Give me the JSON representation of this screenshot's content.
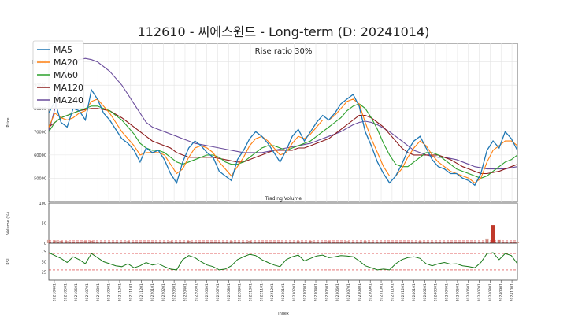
{
  "title": "112610 - 씨에스윈드 - Long-term (D: 20241014)",
  "chart_data": [
    {
      "type": "line",
      "panel": "price",
      "annotation": "Rise ratio 30%",
      "ylabel": "Price",
      "ylim": [
        40000,
        108000
      ],
      "yticks": [
        50000,
        60000,
        70000,
        80000,
        90000,
        100000
      ],
      "grid": true,
      "legend_position": "top-left",
      "series": [
        {
          "name": "MA5",
          "color": "#1f77b4",
          "values": [
            78000,
            83000,
            74000,
            72000,
            80000,
            79000,
            75000,
            88000,
            84000,
            78000,
            75000,
            71000,
            67000,
            65000,
            62000,
            57000,
            63000,
            61000,
            62000,
            58000,
            52000,
            48000,
            57000,
            63000,
            66000,
            64000,
            61000,
            59000,
            53000,
            51000,
            49000,
            58000,
            62000,
            67000,
            70000,
            68000,
            65000,
            61000,
            57000,
            62000,
            68000,
            71000,
            66000,
            70000,
            74000,
            77000,
            75000,
            78000,
            82000,
            84000,
            86000,
            81000,
            70000,
            64000,
            57000,
            52000,
            48000,
            51000,
            56000,
            62000,
            66000,
            68000,
            63000,
            58000,
            55000,
            54000,
            52000,
            52000,
            50000,
            49000,
            47000,
            52000,
            62000,
            66000,
            63000,
            70000,
            67000,
            62000
          ]
        },
        {
          "name": "MA20",
          "color": "#ff7f0e",
          "values": [
            72000,
            78000,
            76000,
            75000,
            76000,
            78000,
            79000,
            83000,
            84000,
            81000,
            78000,
            74000,
            70000,
            67000,
            64000,
            60000,
            61000,
            61000,
            61000,
            60000,
            56000,
            52000,
            54000,
            59000,
            63000,
            64000,
            63000,
            61000,
            57000,
            54000,
            51000,
            55000,
            59000,
            64000,
            67000,
            68000,
            66000,
            63000,
            60000,
            61000,
            65000,
            68000,
            67000,
            69000,
            72000,
            75000,
            75000,
            77000,
            80000,
            83000,
            84000,
            82000,
            74000,
            67000,
            61000,
            55000,
            51000,
            51000,
            54000,
            59000,
            63000,
            66000,
            64000,
            60000,
            57000,
            55000,
            53000,
            52000,
            51000,
            50000,
            48000,
            50000,
            57000,
            62000,
            64000,
            66000,
            66000,
            64000
          ]
        },
        {
          "name": "MA60",
          "color": "#2ca02c",
          "values": [
            70000,
            74000,
            76000,
            77000,
            78000,
            79000,
            80000,
            81000,
            81000,
            80000,
            79000,
            77000,
            75000,
            72000,
            69000,
            65000,
            63000,
            62000,
            62000,
            61000,
            59000,
            57000,
            56000,
            57000,
            58000,
            59000,
            60000,
            60000,
            59000,
            57000,
            56000,
            56000,
            57000,
            59000,
            61000,
            63000,
            64000,
            64000,
            63000,
            62000,
            63000,
            64000,
            65000,
            66000,
            68000,
            70000,
            72000,
            74000,
            76000,
            79000,
            81000,
            82000,
            80000,
            76000,
            71000,
            65000,
            60000,
            56000,
            55000,
            55000,
            57000,
            59000,
            61000,
            61000,
            60000,
            58000,
            56000,
            54000,
            53000,
            52000,
            51000,
            50000,
            51000,
            53000,
            55000,
            57000,
            58000,
            60000
          ]
        },
        {
          "name": "MA120",
          "color": "#8b1a1a",
          "values": [
            72000,
            74000,
            76000,
            77000,
            78000,
            79000,
            79500,
            80000,
            80000,
            79500,
            79000,
            77500,
            76000,
            74000,
            72000,
            70000,
            68000,
            66000,
            65000,
            64000,
            63000,
            61000,
            60000,
            59000,
            59000,
            59000,
            59000,
            59000,
            58500,
            58000,
            57500,
            57000,
            57000,
            58000,
            59000,
            60000,
            61000,
            62000,
            62000,
            62000,
            62000,
            63000,
            63000,
            64000,
            65000,
            66000,
            67000,
            69000,
            71000,
            73000,
            75000,
            77000,
            77000,
            76000,
            74000,
            72000,
            69000,
            66000,
            63000,
            61000,
            60000,
            60000,
            60000,
            60000,
            60000,
            59000,
            58000,
            56500,
            55000,
            54000,
            53000,
            52000,
            52000,
            52500,
            53000,
            54000,
            55000,
            56000
          ]
        },
        {
          "name": "MA240",
          "color": "#6a4c9c",
          "values": [
            70000,
            80000,
            90000,
            98000,
            100000,
            101000,
            101500,
            101000,
            100000,
            98000,
            96000,
            93000,
            90000,
            86000,
            82000,
            78000,
            74000,
            72000,
            71000,
            70000,
            69000,
            68000,
            67000,
            66000,
            65000,
            64500,
            64000,
            63500,
            63000,
            62500,
            62000,
            61500,
            61000,
            61000,
            61000,
            61000,
            61500,
            62000,
            62500,
            63000,
            63500,
            64000,
            64500,
            65000,
            66000,
            67000,
            68000,
            69000,
            70000,
            71500,
            73000,
            74000,
            74500,
            74000,
            73000,
            71500,
            70000,
            68000,
            66000,
            64000,
            62000,
            61000,
            60000,
            59500,
            59000,
            59000,
            58500,
            58000,
            57000,
            56000,
            55000,
            54500,
            54000,
            54000,
            54000,
            54000,
            54500,
            55000
          ]
        }
      ]
    },
    {
      "type": "bar",
      "panel": "volume",
      "title": "Trading Volume",
      "ylabel": "Volume (%)",
      "ylim": [
        0,
        100
      ],
      "yticks": [
        0,
        50,
        100
      ],
      "reference_lines": [
        6,
        2
      ],
      "values": [
        8,
        7,
        6,
        5,
        4,
        3,
        5,
        6,
        4,
        3,
        3,
        4,
        3,
        5,
        3,
        4,
        3,
        3,
        4,
        3,
        5,
        4,
        3,
        6,
        3,
        3,
        4,
        3,
        4,
        3,
        5,
        3,
        4,
        6,
        4,
        3,
        3,
        4,
        3,
        3,
        4,
        5,
        3,
        6,
        4,
        4,
        5,
        3,
        4,
        5,
        4,
        3,
        5,
        4,
        3,
        4,
        3,
        3,
        4,
        3,
        4,
        5,
        4,
        3,
        3,
        3,
        4,
        3,
        3,
        4,
        3,
        3,
        12,
        45,
        8,
        3,
        4,
        3
      ]
    },
    {
      "type": "line",
      "panel": "rsi",
      "ylabel": "RSI",
      "ylim": [
        5,
        95
      ],
      "yticks": [
        25,
        50,
        75
      ],
      "reference_lines": [
        70,
        30
      ],
      "series": [
        {
          "color": "#1a7a1a",
          "values": [
            72,
            65,
            58,
            48,
            62,
            55,
            45,
            70,
            60,
            50,
            45,
            40,
            38,
            45,
            35,
            40,
            48,
            42,
            45,
            38,
            32,
            30,
            55,
            65,
            60,
            50,
            42,
            38,
            30,
            32,
            40,
            55,
            62,
            68,
            65,
            55,
            48,
            42,
            38,
            55,
            62,
            66,
            52,
            58,
            64,
            66,
            60,
            62,
            65,
            64,
            62,
            52,
            40,
            35,
            30,
            32,
            30,
            45,
            55,
            60,
            62,
            58,
            45,
            40,
            45,
            48,
            44,
            45,
            40,
            38,
            35,
            48,
            70,
            72,
            55,
            70,
            65,
            45
          ]
        }
      ]
    },
    {
      "type": "line",
      "panel": "x-axis",
      "xlabel": "Index",
      "categories": [
        "20210401",
        "20210501",
        "20210601",
        "20210701",
        "20210801",
        "20210901",
        "20211001",
        "20211101",
        "20211201",
        "20220101",
        "20220201",
        "20220301",
        "20220401",
        "20220501",
        "20220601",
        "20220701",
        "20220801",
        "20220901",
        "20221001",
        "20221101",
        "20221201",
        "20230101",
        "20230201",
        "20230301",
        "20230401",
        "20230501",
        "20230601",
        "20230701",
        "20230801",
        "20230901",
        "20231001",
        "20231101",
        "20231201",
        "20240101",
        "20240201",
        "20240301",
        "20240401",
        "20240501",
        "20240601",
        "20240701",
        "20240801",
        "20240901",
        "20241001"
      ]
    }
  ]
}
